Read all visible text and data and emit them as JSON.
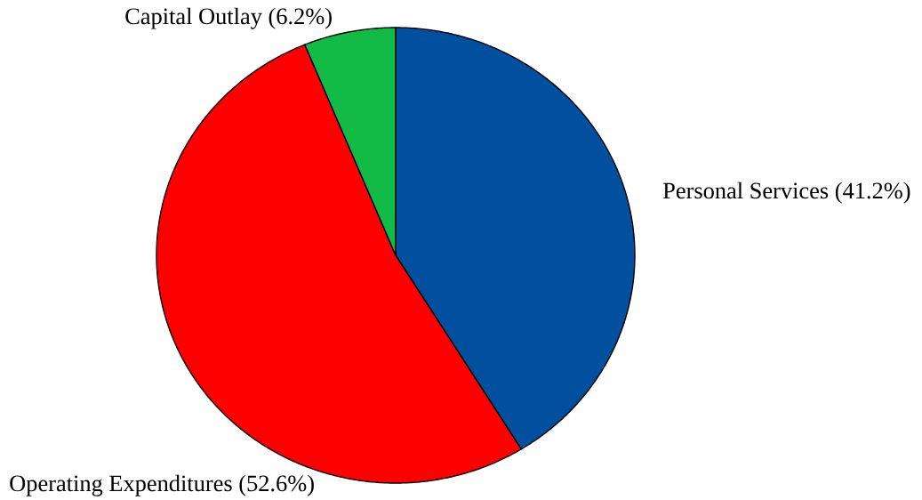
{
  "chart_data": {
    "type": "pie",
    "categories": [
      "Personal Services",
      "Operating Expenditures",
      "Capital Outlay"
    ],
    "values": [
      41.2,
      52.6,
      6.2
    ],
    "colors": [
      "#00509f",
      "#ff0000",
      "#12bb45"
    ],
    "value_labels": [
      "(41.2%)",
      "(52.6%)",
      "(6.2%)"
    ]
  }
}
